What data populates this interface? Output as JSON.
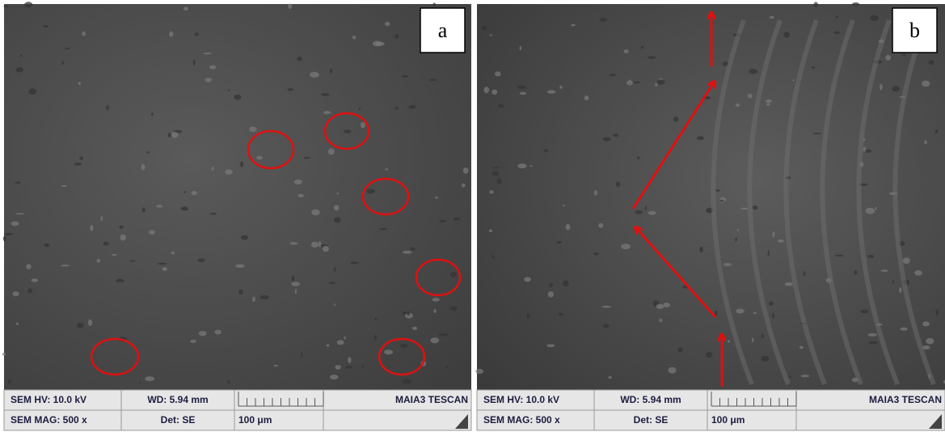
{
  "panels": [
    {
      "label": "a",
      "info": {
        "hv": "SEM HV: 10.0 kV",
        "wd": "WD: 5.94 mm",
        "brand": "MAIA3 TESCAN",
        "mag": "SEM MAG: 500 x",
        "det": "Det: SE",
        "scale": "100 μm"
      }
    },
    {
      "label": "b",
      "info": {
        "hv": "SEM HV: 10.0 kV",
        "wd": "WD: 5.94 mm",
        "brand": "MAIA3 TESCAN",
        "mag": "SEM MAG: 500 x",
        "det": "Det: SE",
        "scale": "100 μm"
      }
    }
  ]
}
